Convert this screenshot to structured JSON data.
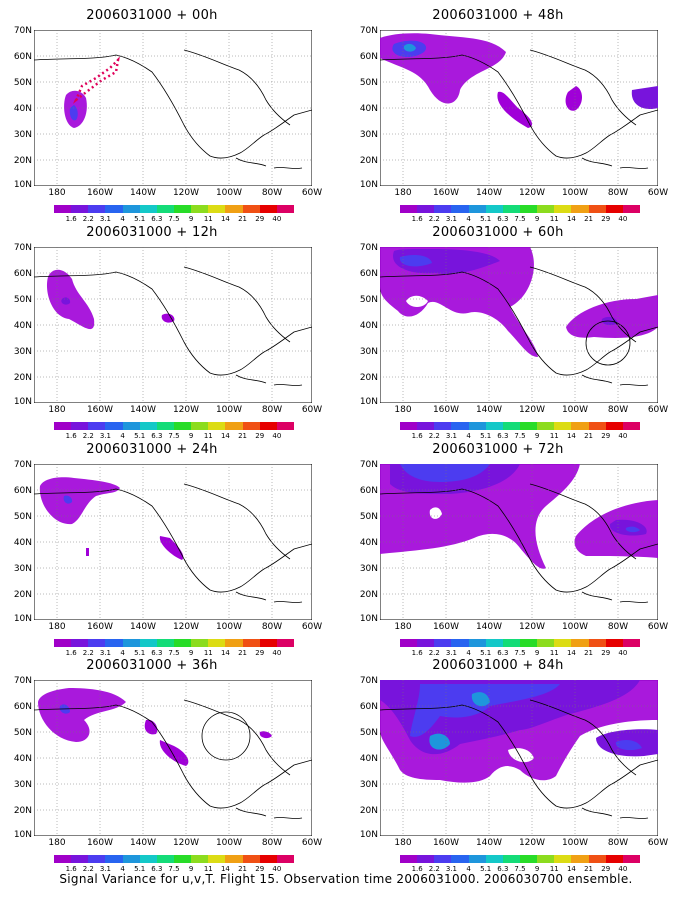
{
  "footer": "Signal Variance for u,v,T. Flight 15. Observation time 2006031000. 2006030700 ensemble.",
  "lat_labels": [
    "70N",
    "60N",
    "50N",
    "40N",
    "30N",
    "20N",
    "10N"
  ],
  "lon_labels": [
    "180",
    "160W",
    "140W",
    "120W",
    "100W",
    "80W",
    "60W"
  ],
  "colorbar": {
    "colors": [
      "#a000c8",
      "#7814dc",
      "#4c3cf0",
      "#2864f0",
      "#1e96dc",
      "#14c8c8",
      "#14dc78",
      "#28dc28",
      "#8cdc1e",
      "#dcdc14",
      "#f0a014",
      "#f05014",
      "#e60000",
      "#dc0064"
    ],
    "labels": [
      "1.6",
      "2.2",
      "3.1",
      "4",
      "5.1",
      "6.3",
      "7.5",
      "9",
      "11",
      "14",
      "21",
      "29",
      "40"
    ]
  },
  "panels": [
    {
      "title": "2006031000 + 00h"
    },
    {
      "title": "2006031000 + 12h"
    },
    {
      "title": "2006031000 + 24h"
    },
    {
      "title": "2006031000 + 36h"
    },
    {
      "title": "2006031000 + 48h"
    },
    {
      "title": "2006031000 + 60h"
    },
    {
      "title": "2006031000 + 72h"
    },
    {
      "title": "2006031000 + 84h"
    }
  ]
}
